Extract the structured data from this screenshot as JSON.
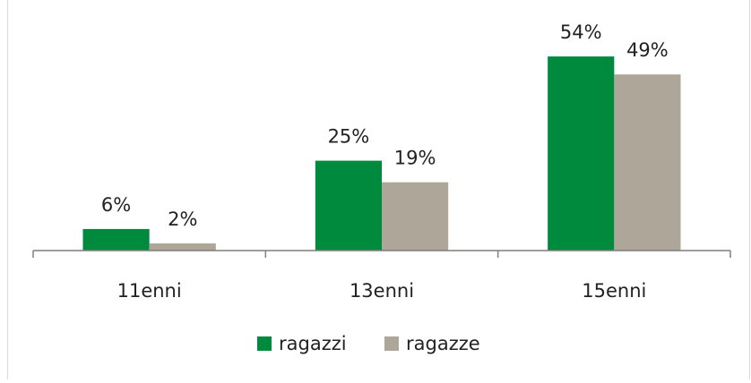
{
  "chart_data": {
    "type": "bar",
    "categories": [
      "11enni",
      "13enni",
      "15enni"
    ],
    "series": [
      {
        "name": "ragazzi",
        "color": "#008a3e",
        "values": [
          6,
          25,
          54
        ],
        "value_labels": [
          "6%",
          "25%",
          "54%"
        ]
      },
      {
        "name": "ragazze",
        "color": "#ada699",
        "values": [
          2,
          19,
          49
        ],
        "value_labels": [
          "2%",
          "19%",
          "49%"
        ]
      }
    ],
    "ylim": [
      0,
      60
    ],
    "legend": "bottom"
  }
}
